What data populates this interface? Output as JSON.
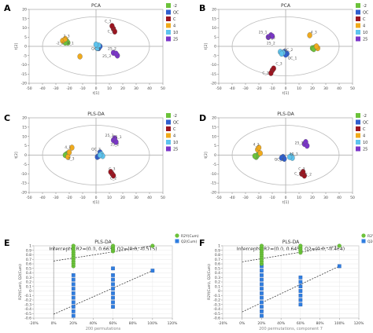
{
  "panels": [
    {
      "letter": "A"
    },
    {
      "letter": "B"
    },
    {
      "letter": "C"
    },
    {
      "letter": "D"
    },
    {
      "letter": "E"
    },
    {
      "letter": "F"
    }
  ],
  "colors": {
    "m2": "#6cc23a",
    "qc": "#2f5fcf",
    "c": "#9b1520",
    "g4": "#f0aa1c",
    "g10": "#5dc3ee",
    "g25": "#7a35c8",
    "r2": "#6cc23a",
    "q2": "#2f7ee0",
    "ellipse": "#bbbbbb",
    "grid": "#e8e8e8"
  },
  "chart_data": [
    {
      "type": "scatter",
      "title": "PCA",
      "xlabel": "t[1]",
      "ylabel": "t[2]",
      "xlim": [
        -50,
        50
      ],
      "ylim": [
        -20,
        20
      ],
      "xticks": [
        -50,
        -40,
        -30,
        -20,
        -10,
        0,
        10,
        20,
        30,
        40,
        50
      ],
      "yticks": [
        -20,
        -15,
        -10,
        -5,
        0,
        5,
        10,
        15,
        20
      ],
      "legend": [
        "-2",
        "QC",
        "C",
        "4",
        "10",
        "25"
      ],
      "series": [
        {
          "name": "-2",
          "points": [
            [
              -22,
              3
            ],
            [
              -21,
              2
            ],
            [
              -23,
              2
            ]
          ]
        },
        {
          "name": "QC",
          "points": [
            [
              1,
              0.3
            ],
            [
              2,
              -1
            ],
            [
              3,
              0
            ]
          ]
        },
        {
          "name": "C",
          "points": [
            [
              13,
              9.5
            ],
            [
              12,
              11
            ],
            [
              14,
              8
            ]
          ]
        },
        {
          "name": "4",
          "points": [
            [
              -25,
              3
            ],
            [
              -23,
              4
            ],
            [
              -12,
              -5.5
            ]
          ]
        },
        {
          "name": "10",
          "points": [
            [
              1,
              -1
            ],
            [
              2,
              0.5
            ],
            [
              0,
              1
            ]
          ]
        },
        {
          "name": "25",
          "points": [
            [
              13,
              -3.5
            ],
            [
              16,
              -5
            ],
            [
              15,
              -4
            ]
          ]
        }
      ],
      "labels": [
        {
          "text": "2_3",
          "x": -22,
          "y": 5
        },
        {
          "text": "-2_2",
          "x": -27,
          "y": 1
        },
        {
          "text": "4_1",
          "x": -19,
          "y": 1
        },
        {
          "text": "C_3",
          "x": 9,
          "y": 13
        },
        {
          "text": "C_1",
          "x": 11,
          "y": 7.5
        },
        {
          "text": "QC_1",
          "x": 0,
          "y": -2
        },
        {
          "text": "25_2",
          "x": 12,
          "y": -2
        },
        {
          "text": "25_3",
          "x": 8,
          "y": -6
        }
      ]
    },
    {
      "type": "scatter",
      "title": "PCA",
      "xlabel": "t[1]",
      "ylabel": "t[2]",
      "xlim": [
        -50,
        50
      ],
      "ylim": [
        -20,
        20
      ],
      "xticks": [
        -50,
        -40,
        -30,
        -20,
        -10,
        0,
        10,
        20,
        30,
        40,
        50
      ],
      "yticks": [
        -20,
        -15,
        -10,
        -5,
        0,
        5,
        10,
        15,
        20
      ],
      "legend": [
        "-2",
        "QC",
        "C",
        "4",
        "10",
        "25"
      ],
      "series": [
        {
          "name": "-2",
          "points": [
            [
              20,
              -1
            ],
            [
              22,
              -0.5
            ],
            [
              21,
              -1.5
            ]
          ]
        },
        {
          "name": "QC",
          "points": [
            [
              1,
              -4
            ],
            [
              -1,
              -3
            ],
            [
              0,
              -4.5
            ]
          ]
        },
        {
          "name": "C",
          "points": [
            [
              -10,
              -13
            ],
            [
              -11,
              -14.5
            ],
            [
              -9,
              -12
            ]
          ]
        },
        {
          "name": "4",
          "points": [
            [
              18,
              6
            ],
            [
              24,
              -1
            ],
            [
              23,
              0
            ]
          ]
        },
        {
          "name": "10",
          "points": [
            [
              -2,
              -3.5
            ],
            [
              -4,
              -3
            ],
            [
              -3,
              -4
            ]
          ]
        },
        {
          "name": "25",
          "points": [
            [
              -11,
              6
            ],
            [
              -13,
              5
            ],
            [
              -10,
              5.5
            ]
          ]
        }
      ],
      "labels": [
        {
          "text": "25_1",
          "x": -17,
          "y": 7
        },
        {
          "text": "25_3",
          "x": -11,
          "y": 4
        },
        {
          "text": "25_2",
          "x": -11,
          "y": 1
        },
        {
          "text": "4_3",
          "x": 21,
          "y": 7
        },
        {
          "text": "QC_2",
          "x": 2,
          "y": -2.5
        },
        {
          "text": "QC_1",
          "x": 5,
          "y": -7
        },
        {
          "text": "C_2",
          "x": -15,
          "y": -15
        },
        {
          "text": "C_3",
          "x": -5,
          "y": -10
        }
      ]
    },
    {
      "type": "scatter",
      "title": "PLS-DA",
      "xlabel": "t[1]",
      "ylabel": "t[2]",
      "xlim": [
        -50,
        50
      ],
      "ylim": [
        -20,
        20
      ],
      "xticks": [
        -50,
        -40,
        -30,
        -20,
        -10,
        0,
        10,
        20,
        30,
        40,
        50
      ],
      "yticks": [
        -20,
        -15,
        -10,
        -5,
        0,
        5,
        10,
        15,
        20
      ],
      "legend": [
        "-2",
        "QC",
        "C",
        "4",
        "10",
        "25"
      ],
      "series": [
        {
          "name": "-2",
          "points": [
            [
              -22,
              0.5
            ],
            [
              -21,
              1
            ],
            [
              -23,
              0
            ]
          ]
        },
        {
          "name": "QC",
          "points": [
            [
              3,
              1.5
            ],
            [
              1,
              -1
            ],
            [
              2,
              -0.5
            ]
          ]
        },
        {
          "name": "C",
          "points": [
            [
              12,
              -10
            ],
            [
              13,
              -11
            ],
            [
              11,
              -9
            ]
          ]
        },
        {
          "name": "4",
          "points": [
            [
              -18,
              4
            ],
            [
              -20,
              1.5
            ],
            [
              -21,
              -1
            ]
          ]
        },
        {
          "name": "10",
          "points": [
            [
              4,
              0.5
            ],
            [
              5,
              -0.5
            ],
            [
              3,
              0
            ]
          ]
        },
        {
          "name": "25",
          "points": [
            [
              13,
              8
            ],
            [
              15,
              7
            ],
            [
              14,
              9
            ]
          ]
        }
      ],
      "labels": [
        {
          "text": "25_3",
          "x": 10,
          "y": 10
        },
        {
          "text": "25_2",
          "x": 14,
          "y": 5
        },
        {
          "text": "25_1",
          "x": 16,
          "y": 9
        },
        {
          "text": "QC_3",
          "x": 0,
          "y": 2.5
        },
        {
          "text": "4_1",
          "x": -21,
          "y": 3.5
        },
        {
          "text": "-2_3",
          "x": -19,
          "y": -2.5
        },
        {
          "text": "C_3",
          "x": 12,
          "y": -8
        },
        {
          "text": "C_2",
          "x": 13,
          "y": -13
        }
      ]
    },
    {
      "type": "scatter",
      "title": "PLS-DA",
      "xlabel": "t[1]",
      "ylabel": "t[2]",
      "xlim": [
        -50,
        50
      ],
      "ylim": [
        -20,
        20
      ],
      "xticks": [
        -50,
        -40,
        -30,
        -20,
        -10,
        0,
        10,
        20,
        30,
        40,
        50
      ],
      "yticks": [
        -20,
        -15,
        -10,
        -5,
        0,
        5,
        10,
        15,
        20
      ],
      "legend": [
        "-2",
        "QC",
        "C",
        "4",
        "10",
        "25"
      ],
      "series": [
        {
          "name": "-2",
          "points": [
            [
              -22,
              -1
            ],
            [
              -21,
              0
            ],
            [
              -23,
              -0.5
            ]
          ]
        },
        {
          "name": "QC",
          "points": [
            [
              -2,
              -1
            ],
            [
              -1,
              -2
            ],
            [
              -3,
              -1.5
            ]
          ]
        },
        {
          "name": "C",
          "points": [
            [
              12,
              -10
            ],
            [
              14,
              -11
            ],
            [
              13,
              -9
            ]
          ]
        },
        {
          "name": "4",
          "points": [
            [
              -21,
              3
            ],
            [
              -20,
              4
            ],
            [
              -19,
              1
            ]
          ]
        },
        {
          "name": "10",
          "points": [
            [
              4,
              -0.5
            ],
            [
              5,
              -1.5
            ],
            [
              3,
              -1
            ]
          ]
        },
        {
          "name": "25",
          "points": [
            [
              14,
              6
            ],
            [
              15,
              7
            ],
            [
              16,
              5
            ]
          ]
        }
      ],
      "labels": [
        {
          "text": "4_2",
          "x": -22,
          "y": 5
        },
        {
          "text": "25_3",
          "x": 10,
          "y": 6
        },
        {
          "text": "10_3",
          "x": 6,
          "y": 0
        },
        {
          "text": "QC_1",
          "x": -5,
          "y": -3
        },
        {
          "text": "C_3",
          "x": 12,
          "y": -8
        },
        {
          "text": "C_1",
          "x": 9,
          "y": -10.5
        },
        {
          "text": "C_2",
          "x": 17,
          "y": -11
        }
      ]
    },
    {
      "type": "scatter",
      "title": "PLS-DA",
      "subtitle": "Intercepts: R2=(0.0, 0.663), Q2=(0.0, -0.515)",
      "xlabel": "200 permutations",
      "ylabel": "R2Y(Cum), Q2(Cum)",
      "xlim": [
        -20,
        120
      ],
      "ylim": [
        -0.6,
        1
      ],
      "xtick_labels": [
        "-20%",
        "0%",
        "20%",
        "40%",
        "60%",
        "80%",
        "100%",
        "120%"
      ],
      "yticks": [
        -0.6,
        -0.5,
        -0.4,
        -0.3,
        -0.2,
        -0.1,
        0,
        0.1,
        0.2,
        0.3,
        0.4,
        0.5,
        0.6,
        0.7,
        0.8,
        0.9,
        1
      ],
      "legend": [
        "R2Y(Cum)",
        "Q2(Cum)"
      ],
      "r2_points": [
        [
          20,
          0.55
        ],
        [
          20,
          0.6
        ],
        [
          20,
          0.65
        ],
        [
          20,
          0.7
        ],
        [
          20,
          0.75
        ],
        [
          20,
          0.8
        ],
        [
          20,
          0.85
        ],
        [
          20,
          0.9
        ],
        [
          20,
          0.95
        ],
        [
          20,
          1
        ],
        [
          60,
          0.88
        ],
        [
          60,
          0.92
        ],
        [
          60,
          0.96
        ],
        [
          60,
          1
        ],
        [
          100,
          1
        ]
      ],
      "q2_points": [
        [
          20,
          -0.55
        ],
        [
          20,
          -0.45
        ],
        [
          20,
          -0.35
        ],
        [
          20,
          -0.25
        ],
        [
          20,
          -0.15
        ],
        [
          20,
          -0.05
        ],
        [
          20,
          0.05
        ],
        [
          20,
          0.15
        ],
        [
          20,
          0.25
        ],
        [
          20,
          0.35
        ],
        [
          60,
          -0.35
        ],
        [
          60,
          -0.25
        ],
        [
          60,
          -0.15
        ],
        [
          60,
          -0.05
        ],
        [
          60,
          0.05
        ],
        [
          60,
          0.15
        ],
        [
          60,
          0.25
        ],
        [
          60,
          0.35
        ],
        [
          60,
          0.5
        ],
        [
          100,
          0.45
        ]
      ],
      "r2_line": [
        [
          0,
          0.663
        ],
        [
          100,
          1
        ]
      ],
      "q2_line": [
        [
          0,
          -0.515
        ],
        [
          100,
          0.45
        ]
      ]
    },
    {
      "type": "scatter",
      "title": "PLS-DA",
      "subtitle": "Intercepts: R2=(0.0, 0.645), Q2=(0.0, -0.464)",
      "xlabel": "200 permutations, component 7",
      "ylabel": "R2Y(Cum), Q2(Cum)",
      "xlim": [
        -20,
        120
      ],
      "ylim": [
        -0.6,
        1
      ],
      "xtick_labels": [
        "-20%",
        "0%",
        "20%",
        "40%",
        "60%",
        "80%",
        "100%",
        "120%"
      ],
      "yticks": [
        -0.6,
        -0.5,
        -0.4,
        -0.3,
        -0.2,
        -0.1,
        0,
        0.1,
        0.2,
        0.3,
        0.4,
        0.5,
        0.6,
        0.7,
        0.8,
        0.9,
        1
      ],
      "legend": [
        "R2Y(Cum)",
        "Q2(Cum)"
      ],
      "r2_points": [
        [
          20,
          0.6
        ],
        [
          20,
          0.65
        ],
        [
          20,
          0.7
        ],
        [
          20,
          0.75
        ],
        [
          20,
          0.8
        ],
        [
          20,
          0.85
        ],
        [
          20,
          0.9
        ],
        [
          20,
          0.95
        ],
        [
          20,
          1
        ],
        [
          60,
          0.85
        ],
        [
          60,
          0.9
        ],
        [
          60,
          0.95
        ],
        [
          60,
          1
        ],
        [
          100,
          1
        ]
      ],
      "q2_points": [
        [
          20,
          -0.55
        ],
        [
          20,
          -0.45
        ],
        [
          20,
          -0.35
        ],
        [
          20,
          -0.25
        ],
        [
          20,
          -0.15
        ],
        [
          20,
          -0.05
        ],
        [
          20,
          0.05
        ],
        [
          20,
          0.15
        ],
        [
          20,
          0.25
        ],
        [
          20,
          0.35
        ],
        [
          20,
          0.45
        ],
        [
          20,
          0.55
        ],
        [
          60,
          -0.3
        ],
        [
          60,
          -0.2
        ],
        [
          60,
          -0.1
        ],
        [
          60,
          0
        ],
        [
          60,
          0.1
        ],
        [
          60,
          0.2
        ],
        [
          60,
          0.3
        ],
        [
          100,
          0.55
        ]
      ],
      "r2_line": [
        [
          0,
          0.645
        ],
        [
          100,
          1
        ]
      ],
      "q2_line": [
        [
          0,
          -0.464
        ],
        [
          100,
          0.55
        ]
      ]
    }
  ]
}
